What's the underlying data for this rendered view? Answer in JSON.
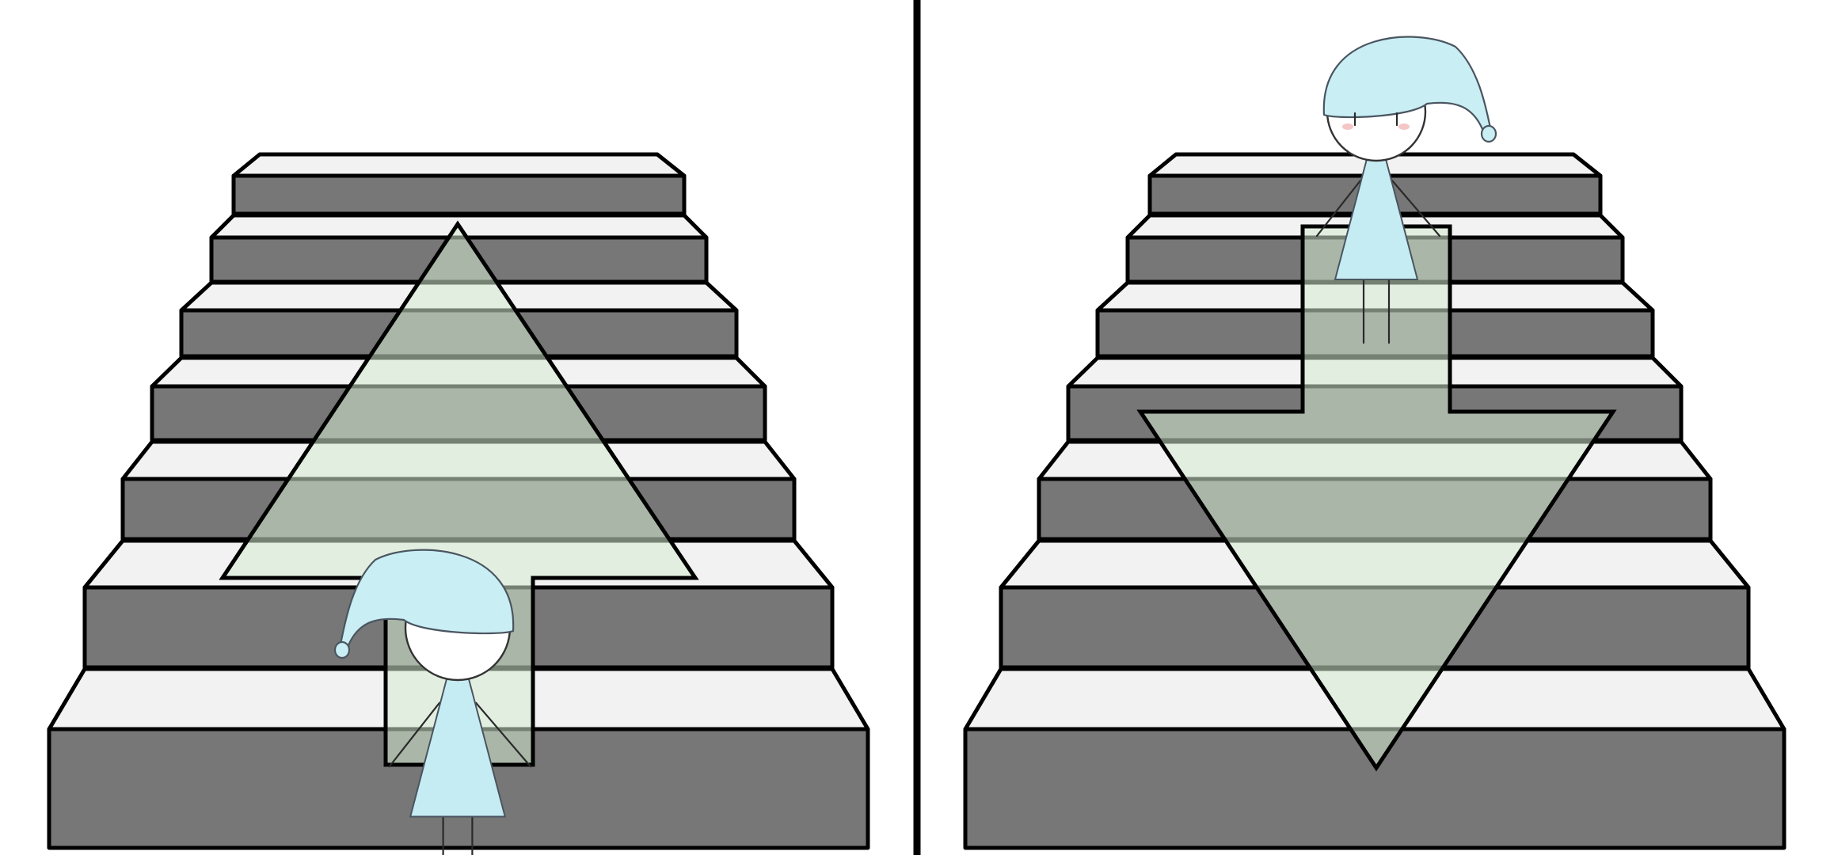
{
  "figure": {
    "panels": [
      {
        "id": "left",
        "arrow": "up"
      },
      {
        "id": "right",
        "arrow": "down"
      }
    ],
    "colors": {
      "riser": "#777777",
      "tread": "#f2f2f2",
      "arrow": "#d6ecd2",
      "hat": "#c9eef4",
      "divider": "#000000"
    }
  }
}
